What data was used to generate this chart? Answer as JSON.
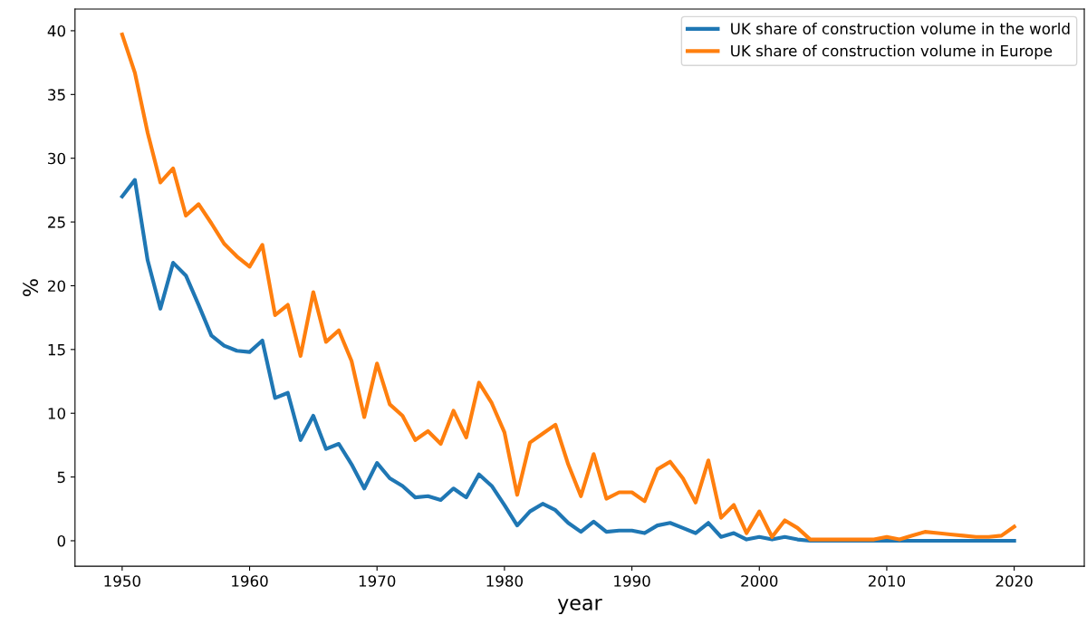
{
  "chart_data": {
    "type": "line",
    "xlabel": "year",
    "ylabel": "%",
    "x": [
      1950,
      1951,
      1952,
      1953,
      1954,
      1955,
      1956,
      1957,
      1958,
      1959,
      1960,
      1961,
      1962,
      1963,
      1964,
      1965,
      1966,
      1967,
      1968,
      1969,
      1970,
      1971,
      1972,
      1973,
      1974,
      1975,
      1976,
      1977,
      1978,
      1979,
      1980,
      1981,
      1982,
      1983,
      1984,
      1985,
      1986,
      1987,
      1988,
      1989,
      1990,
      1991,
      1992,
      1993,
      1994,
      1995,
      1996,
      1997,
      1998,
      1999,
      2000,
      2001,
      2002,
      2003,
      2004,
      2005,
      2006,
      2007,
      2008,
      2009,
      2010,
      2011,
      2012,
      2013,
      2014,
      2015,
      2016,
      2017,
      2018,
      2019,
      2020
    ],
    "series": [
      {
        "name": "UK share of construction volume in the world",
        "color": "#1f77b4",
        "values": [
          27.0,
          28.3,
          22.0,
          18.2,
          21.8,
          20.8,
          18.5,
          16.1,
          15.3,
          14.9,
          14.8,
          15.7,
          11.2,
          11.6,
          7.9,
          9.8,
          7.2,
          7.6,
          6.0,
          4.1,
          6.1,
          4.9,
          4.3,
          3.4,
          3.5,
          3.2,
          4.1,
          3.4,
          5.2,
          4.3,
          2.8,
          1.2,
          2.3,
          2.9,
          2.4,
          1.4,
          0.7,
          1.5,
          0.7,
          0.8,
          0.8,
          0.6,
          1.2,
          1.4,
          1.0,
          0.6,
          1.4,
          0.3,
          0.6,
          0.1,
          0.3,
          0.1,
          0.3,
          0.1,
          0.0,
          0.0,
          0.0,
          0.0,
          0.0,
          0.0,
          0.0,
          0.0,
          0.0,
          0.0,
          0.0,
          0.0,
          0.0,
          0.0,
          0.0,
          0.0,
          0.0
        ]
      },
      {
        "name": "UK share of construction volume in Europe",
        "color": "#ff7f0e",
        "values": [
          39.7,
          36.7,
          32.0,
          28.1,
          29.2,
          25.5,
          26.4,
          24.9,
          23.3,
          22.3,
          21.5,
          23.2,
          17.7,
          18.5,
          14.5,
          19.5,
          15.6,
          16.5,
          14.1,
          9.7,
          13.9,
          10.7,
          9.8,
          7.9,
          8.6,
          7.6,
          10.2,
          8.1,
          12.4,
          10.8,
          8.5,
          3.6,
          7.7,
          8.4,
          9.1,
          6.0,
          3.5,
          6.8,
          3.3,
          3.8,
          3.8,
          3.1,
          5.6,
          6.2,
          4.9,
          3.0,
          6.3,
          1.8,
          2.8,
          0.6,
          2.3,
          0.3,
          1.6,
          1.0,
          0.1,
          0.1,
          0.1,
          0.1,
          0.1,
          0.1,
          0.3,
          0.1,
          0.4,
          0.7,
          0.6,
          0.5,
          0.4,
          0.3,
          0.3,
          0.4,
          1.1
        ]
      }
    ],
    "xlim": [
      1946.3,
      2025.5
    ],
    "ylim": [
      -2.0,
      41.7
    ],
    "xticks": [
      1950,
      1960,
      1970,
      1980,
      1990,
      2000,
      2010,
      2020
    ],
    "yticks": [
      0,
      5,
      10,
      15,
      20,
      25,
      30,
      35,
      40
    ],
    "grid": false,
    "legend": "top right"
  }
}
